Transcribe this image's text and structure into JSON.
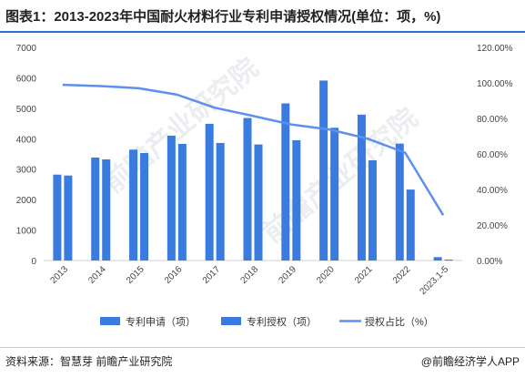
{
  "title": "图表1：2013-2023年中国耐火材料行业专利申请授权情况(单位：项，%)",
  "source": "资料来源：智慧芽 前瞻产业研究院",
  "credit": "@前瞻经济学人APP",
  "watermark": "前瞻产业研究院",
  "colors": {
    "accent": "#2f6fd1",
    "apply_bar": "#3a7be0",
    "grant_bar": "#3a7be0",
    "ratio_line": "#5b8ff0"
  },
  "chart_data": {
    "type": "bar",
    "categories": [
      "2013",
      "2014",
      "2015",
      "2016",
      "2017",
      "2018",
      "2019",
      "2020",
      "2021",
      "2022",
      "2023.1-5"
    ],
    "series": [
      {
        "name": "专利申请（项）",
        "type": "bar",
        "axis": "left",
        "values": [
          2820,
          3380,
          3640,
          4100,
          4490,
          4680,
          5160,
          5910,
          4790,
          3840,
          110
        ]
      },
      {
        "name": "专利授权（项）",
        "type": "bar",
        "axis": "left",
        "values": [
          2790,
          3320,
          3530,
          3830,
          3860,
          3810,
          3950,
          4360,
          3290,
          2330,
          30
        ]
      },
      {
        "name": "授权占比（%）",
        "type": "line",
        "axis": "right",
        "values": [
          98.9,
          98.2,
          97.0,
          93.4,
          86.0,
          81.4,
          76.6,
          73.8,
          68.7,
          60.7,
          25.5
        ]
      }
    ],
    "ylim_left": [
      0,
      7000
    ],
    "left_ticks": [
      "0",
      "1000",
      "2000",
      "3000",
      "4000",
      "5000",
      "6000",
      "7000"
    ],
    "ylim_right": [
      0,
      120
    ],
    "right_ticks": [
      "0.00%",
      "20.00%",
      "40.00%",
      "60.00%",
      "80.00%",
      "100.00%",
      "120.00%"
    ],
    "grid": false,
    "legend_position": "bottom"
  }
}
